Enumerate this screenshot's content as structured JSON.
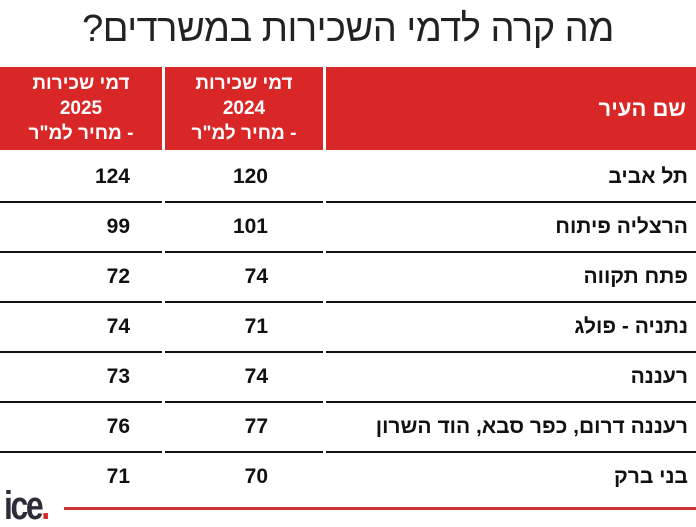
{
  "title": "מה קרה לדמי השכירות במשרדים?",
  "chart_data": {
    "type": "table",
    "columns": [
      "שם העיר",
      "דמי שכירות 2024 - מחיר למ\"ר",
      "דמי שכירות 2025 - מחיר למ\"ר"
    ],
    "header": {
      "city": "שם העיר",
      "y2024": [
        "דמי שכירות",
        "2024",
        "- מחיר למ\"ר"
      ],
      "y2025": [
        "דמי שכירות",
        "2025",
        "- מחיר למ\"ר"
      ]
    },
    "rows": [
      {
        "city": "תל אביב",
        "y2024": 120,
        "y2025": 124
      },
      {
        "city": "הרצליה פיתוח",
        "y2024": 101,
        "y2025": 99
      },
      {
        "city": "פתח תקווה",
        "y2024": 74,
        "y2025": 72
      },
      {
        "city": "נתניה - פולג",
        "y2024": 71,
        "y2025": 74
      },
      {
        "city": "רעננה",
        "y2024": 74,
        "y2025": 73
      },
      {
        "city": "רעננה דרום, כפר סבא, הוד השרון",
        "y2024": 77,
        "y2025": 76
      },
      {
        "city": "בני ברק",
        "y2024": 70,
        "y2025": 71
      }
    ]
  },
  "logo": {
    "text": "ice",
    "dot": "."
  },
  "colors": {
    "accent": "#d92627",
    "text": "#111111"
  }
}
